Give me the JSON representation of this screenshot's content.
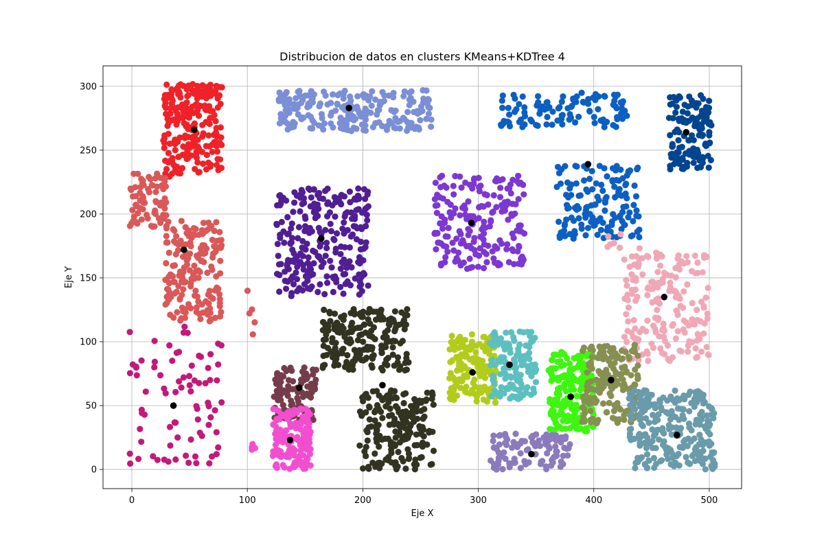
{
  "chart_data": {
    "type": "scatter",
    "title": "Distribucion de datos en clusters KMeans+KDTree 4",
    "xlabel": "Eje X",
    "ylabel": "Eje Y",
    "xlim": [
      -25,
      528
    ],
    "ylim": [
      -15,
      316
    ],
    "x_ticks": [
      0,
      100,
      200,
      300,
      400,
      500
    ],
    "y_ticks": [
      0,
      50,
      100,
      150,
      200,
      250,
      300
    ],
    "grid": true,
    "legend": "none",
    "centroid_color": "#000000",
    "clusters": [
      {
        "color": "#ee2228",
        "xmin": 27,
        "xmax": 78,
        "ymin": 228,
        "ymax": 302,
        "n": 230,
        "centroid": [
          54,
          266
        ]
      },
      {
        "color": "#7b8fd6",
        "xmin": 127,
        "xmax": 260,
        "ymin": 265,
        "ymax": 297,
        "n": 230,
        "centroid": [
          188,
          283
        ]
      },
      {
        "color": "#0d5fc2",
        "xmin": 318,
        "xmax": 430,
        "ymin": 268,
        "ymax": 295,
        "n": 110,
        "centroid": [
          395,
          239
        ]
      },
      {
        "color": "#03458f",
        "xmin": 465,
        "xmax": 502,
        "ymin": 235,
        "ymax": 293,
        "n": 140,
        "centroid": [
          480,
          264
        ]
      },
      {
        "color": "#d95858",
        "xmin": -2,
        "xmax": 30,
        "ymin": 190,
        "ymax": 232,
        "n": 70,
        "centroid": null
      },
      {
        "color": "#d95858",
        "xmin": 28,
        "xmax": 78,
        "ymin": 115,
        "ymax": 195,
        "n": 180,
        "centroid": [
          45,
          172
        ]
      },
      {
        "color": "#d95858",
        "xmin": 100,
        "xmax": 108,
        "ymin": 105,
        "ymax": 148,
        "n": 5,
        "centroid": null
      },
      {
        "color": "#511e94",
        "xmin": 125,
        "xmax": 205,
        "ymin": 135,
        "ymax": 220,
        "n": 260,
        "centroid": [
          164,
          181
        ]
      },
      {
        "color": "#7c38d1",
        "xmin": 262,
        "xmax": 340,
        "ymin": 157,
        "ymax": 230,
        "n": 200,
        "centroid": [
          294,
          193
        ]
      },
      {
        "color": "#0d5fc2",
        "xmin": 368,
        "xmax": 440,
        "ymin": 180,
        "ymax": 238,
        "n": 150,
        "centroid": null
      },
      {
        "color": "#f0a8b6",
        "xmin": 425,
        "xmax": 500,
        "ymin": 85,
        "ymax": 170,
        "n": 190,
        "centroid": [
          461,
          135
        ]
      },
      {
        "color": "#f0a8b6",
        "xmin": 410,
        "xmax": 440,
        "ymin": 172,
        "ymax": 192,
        "n": 8,
        "centroid": null
      },
      {
        "color": "#c2197a",
        "xmin": -2,
        "xmax": 78,
        "ymin": 2,
        "ymax": 113,
        "n": 80,
        "centroid": [
          36,
          50
        ]
      },
      {
        "color": "#333322",
        "xmin": 165,
        "xmax": 240,
        "ymin": 77,
        "ymax": 126,
        "n": 200,
        "centroid": null
      },
      {
        "color": "#333322",
        "xmin": 197,
        "xmax": 262,
        "ymin": 0,
        "ymax": 62,
        "n": 190,
        "centroid": [
          217,
          66
        ]
      },
      {
        "color": "#753d4a",
        "xmin": 123,
        "xmax": 160,
        "ymin": 38,
        "ymax": 80,
        "n": 100,
        "centroid": [
          145,
          64
        ]
      },
      {
        "color": "#f24fd0",
        "xmin": 122,
        "xmax": 155,
        "ymin": 0,
        "ymax": 48,
        "n": 150,
        "centroid": [
          137,
          23
        ]
      },
      {
        "color": "#f24fd0",
        "xmin": 100,
        "xmax": 108,
        "ymin": 14,
        "ymax": 20,
        "n": 4,
        "centroid": null
      },
      {
        "color": "#b2cc1c",
        "xmin": 275,
        "xmax": 315,
        "ymin": 52,
        "ymax": 106,
        "n": 170,
        "centroid": [
          295,
          76
        ]
      },
      {
        "color": "#5bc0bf",
        "xmin": 310,
        "xmax": 350,
        "ymin": 55,
        "ymax": 108,
        "n": 130,
        "centroid": [
          327,
          82
        ]
      },
      {
        "color": "#3ff610",
        "xmin": 360,
        "xmax": 400,
        "ymin": 30,
        "ymax": 92,
        "n": 210,
        "centroid": [
          380,
          57
        ]
      },
      {
        "color": "#878f52",
        "xmin": 390,
        "xmax": 440,
        "ymin": 35,
        "ymax": 98,
        "n": 180,
        "centroid": [
          415,
          70
        ]
      },
      {
        "color": "#8b7bbd",
        "xmin": 310,
        "xmax": 380,
        "ymin": 0,
        "ymax": 28,
        "n": 110,
        "centroid": [
          346,
          12
        ]
      },
      {
        "color": "#6a9baa",
        "xmin": 430,
        "xmax": 505,
        "ymin": 0,
        "ymax": 62,
        "n": 260,
        "centroid": [
          472,
          27
        ]
      }
    ]
  }
}
